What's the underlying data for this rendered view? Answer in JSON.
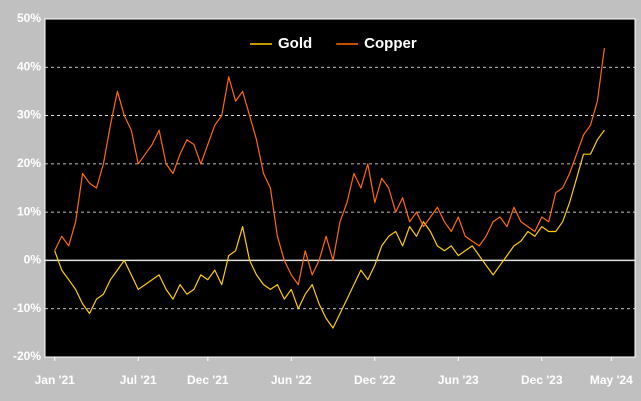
{
  "chart_data": {
    "type": "line",
    "x": [
      0,
      0.5,
      1,
      1.5,
      2,
      2.5,
      3,
      3.5,
      4,
      4.5,
      5,
      5.5,
      6,
      6.5,
      7,
      7.5,
      8,
      8.5,
      9,
      9.5,
      10,
      10.5,
      11,
      11.5,
      12,
      12.5,
      13,
      13.5,
      14,
      14.5,
      15,
      15.5,
      16,
      16.5,
      17,
      17.5,
      18,
      18.5,
      19,
      19.5,
      20,
      20.5,
      21,
      21.5,
      22,
      22.5,
      23,
      23.5,
      24,
      24.5,
      25,
      25.5,
      26,
      26.5,
      27,
      27.5,
      28,
      28.5,
      29,
      29.5,
      30,
      30.5,
      31,
      31.5,
      32,
      32.5,
      33,
      33.5,
      34,
      34.5,
      35,
      35.5,
      36,
      36.5,
      37,
      37.5,
      38,
      38.5,
      39,
      39.5
    ],
    "series": [
      {
        "name": "Gold",
        "color": "#ffcc00",
        "values": [
          2,
          -2,
          -4,
          -6,
          -9,
          -11,
          -8,
          -7,
          -4,
          -2,
          0,
          -3,
          -6,
          -5,
          -4,
          -3,
          -6,
          -8,
          -5,
          -7,
          -6,
          -3,
          -4,
          -2,
          -5,
          1,
          2,
          7,
          0,
          -3,
          -5,
          -6,
          -5,
          -8,
          -6,
          -10,
          -7,
          -5,
          -9,
          -12,
          -14,
          -11,
          -8,
          -5,
          -2,
          -4,
          -1,
          3,
          5,
          6,
          3,
          7,
          5,
          8,
          6,
          3,
          2,
          3,
          1,
          2,
          3,
          1,
          -1,
          -3,
          -1,
          1,
          3,
          4,
          6,
          5,
          7,
          6,
          6,
          8,
          12,
          17,
          22,
          22,
          25,
          27
        ]
      },
      {
        "name": "Copper",
        "color": "#ff6a00",
        "values": [
          2,
          5,
          3,
          8,
          18,
          16,
          15,
          20,
          28,
          35,
          30,
          27,
          20,
          22,
          24,
          27,
          20,
          18,
          22,
          25,
          24,
          20,
          24,
          28,
          30,
          38,
          33,
          35,
          30,
          25,
          18,
          15,
          5,
          0,
          -3,
          -5,
          2,
          -3,
          0,
          5,
          0,
          8,
          12,
          18,
          15,
          20,
          12,
          17,
          15,
          10,
          13,
          8,
          10,
          7,
          9,
          11,
          8,
          6,
          9,
          5,
          4,
          3,
          5,
          8,
          9,
          7,
          11,
          8,
          7,
          6,
          9,
          8,
          14,
          15,
          18,
          22,
          26,
          28,
          33,
          44
        ]
      }
    ],
    "xlim": [
      -0.7,
      41.7
    ],
    "xticks": [
      {
        "value": 0,
        "label": "Jan '21"
      },
      {
        "value": 6,
        "label": "Jul '21"
      },
      {
        "value": 11,
        "label": "Dec '21"
      },
      {
        "value": 17,
        "label": "Jun '22"
      },
      {
        "value": 23,
        "label": "Dec '22"
      },
      {
        "value": 29,
        "label": "Jun '23"
      },
      {
        "value": 35,
        "label": "Dec '23"
      },
      {
        "value": 40,
        "label": "May '24"
      }
    ],
    "ylim": [
      -20,
      50
    ],
    "yticks": [
      {
        "value": -20,
        "label": "-20%"
      },
      {
        "value": -10,
        "label": "-10%"
      },
      {
        "value": 0,
        "label": "0%"
      },
      {
        "value": 10,
        "label": "10%"
      },
      {
        "value": 20,
        "label": "20%"
      },
      {
        "value": 30,
        "label": "30%"
      },
      {
        "value": 40,
        "label": "40%"
      },
      {
        "value": 50,
        "label": "50%"
      }
    ],
    "grid": true,
    "legend": "top"
  }
}
